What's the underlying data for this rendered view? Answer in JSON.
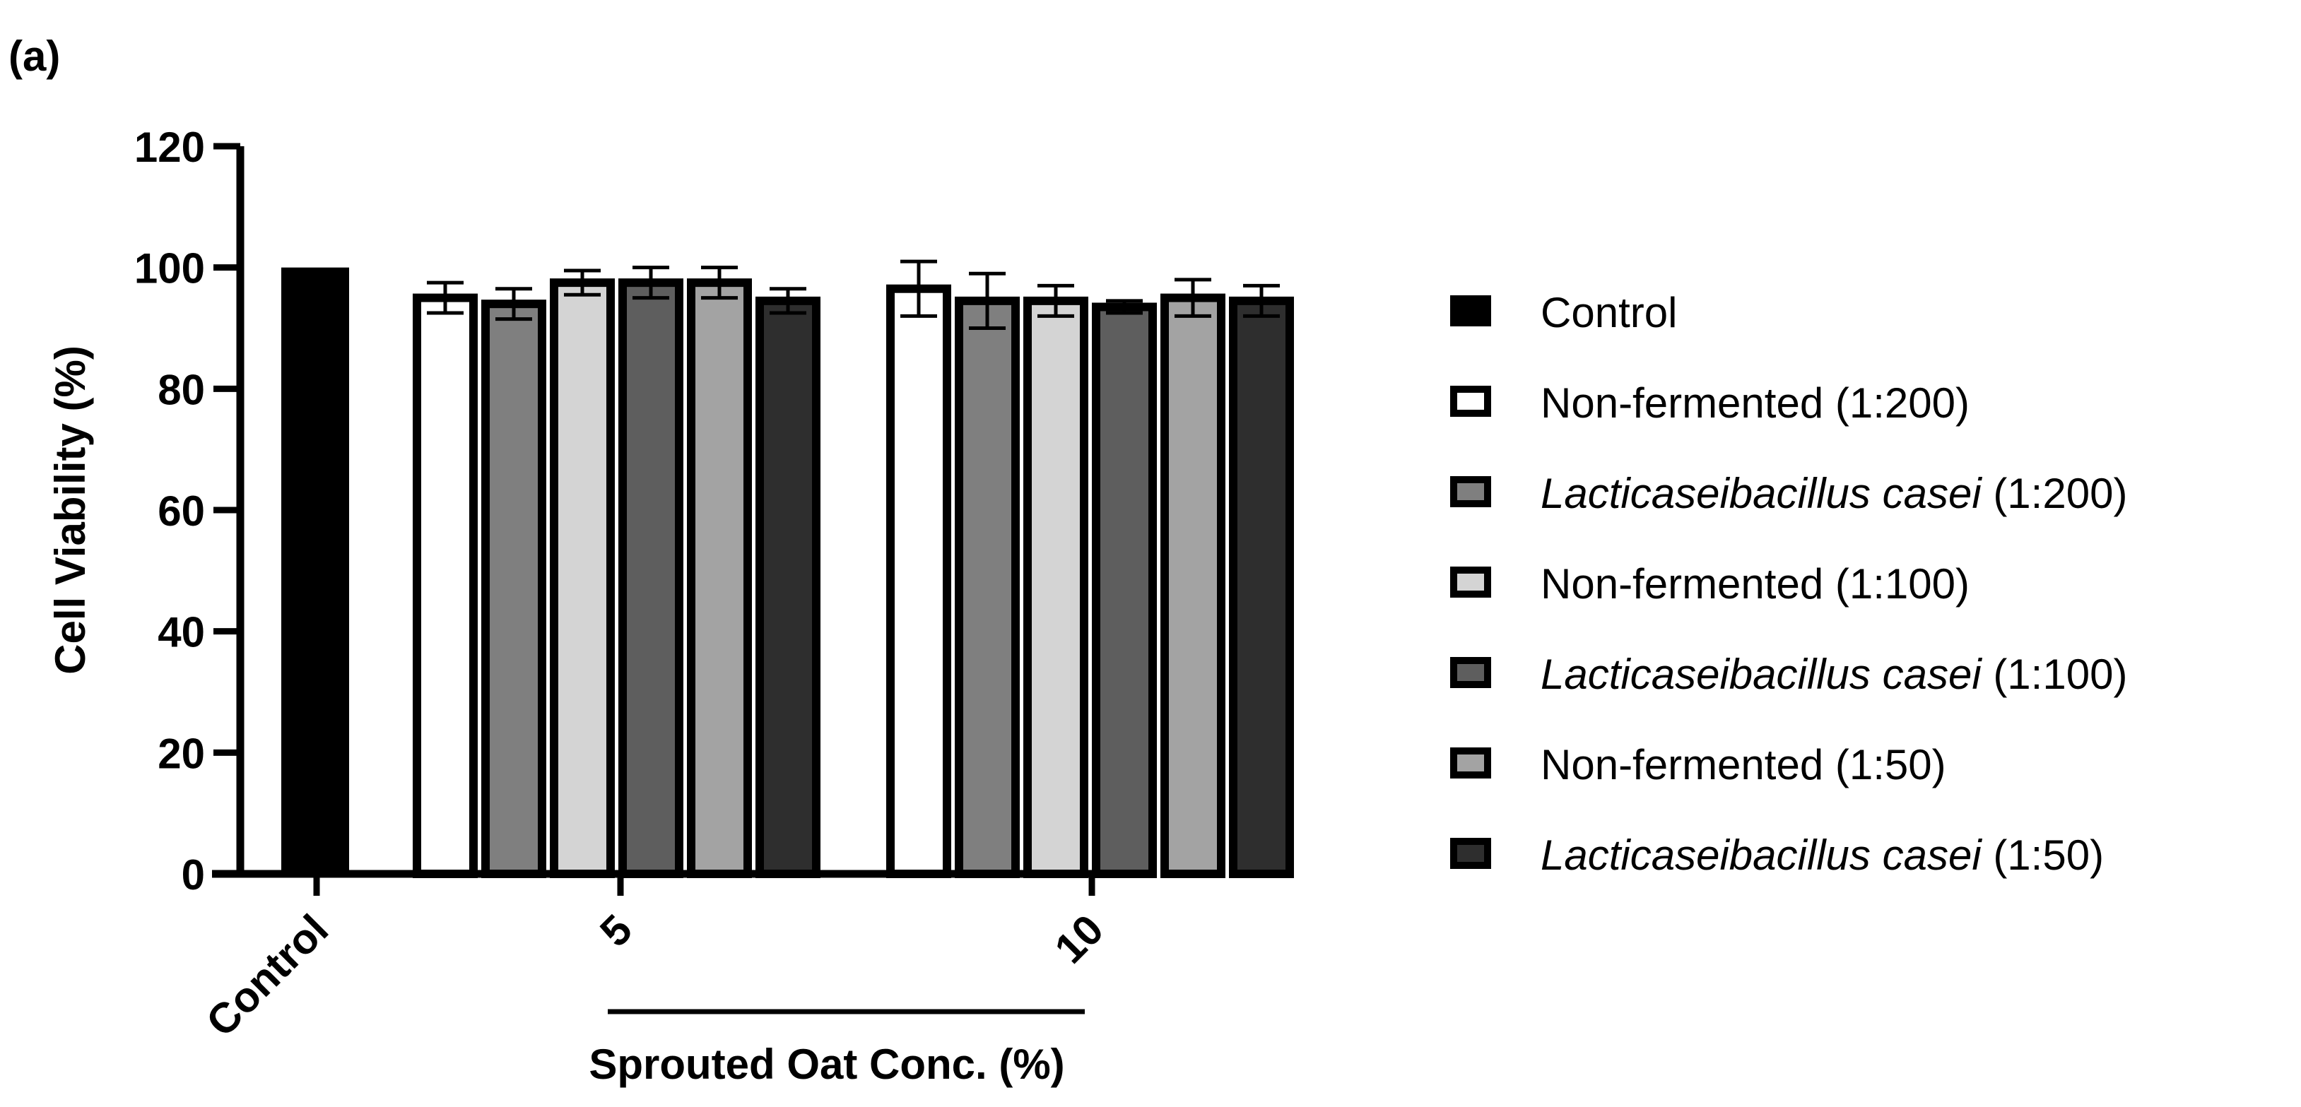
{
  "panel_label": "(a)",
  "chart_data": {
    "type": "bar",
    "ylabel": "Cell Viability (%)",
    "xlabel": "Sprouted Oat Conc. (%)",
    "ylim": [
      0,
      120
    ],
    "yticks": [
      0,
      20,
      40,
      60,
      80,
      100,
      120
    ],
    "categories": [
      "Control",
      "5",
      "10"
    ],
    "series": [
      {
        "name": "Control",
        "color": "#000000",
        "values": [
          100,
          null,
          null
        ],
        "errors": [
          0,
          null,
          null
        ]
      },
      {
        "name": "Non-fermented (1:200)",
        "color": "#ffffff",
        "values": [
          null,
          95,
          96.5
        ],
        "errors": [
          null,
          2.5,
          4.5
        ]
      },
      {
        "name": "Lacticaseibacillus casei (1:200)",
        "color": "#7f7f7f",
        "values": [
          null,
          94,
          94.5
        ],
        "errors": [
          null,
          2.5,
          4.5
        ]
      },
      {
        "name": "Non-fermented (1:100)",
        "color": "#d4d4d4",
        "values": [
          null,
          97.5,
          94.5
        ],
        "errors": [
          null,
          2.0,
          2.5
        ]
      },
      {
        "name": "Lacticaseibacillus casei (1:100)",
        "color": "#5e5e5e",
        "values": [
          null,
          97.5,
          93.5
        ],
        "errors": [
          null,
          2.5,
          1.0
        ]
      },
      {
        "name": "Non-fermented (1:50)",
        "color": "#a3a3a3",
        "values": [
          null,
          97.5,
          95
        ],
        "errors": [
          null,
          2.5,
          3.0
        ]
      },
      {
        "name": "Lacticaseibacillus casei (1:50)",
        "color": "#2e2e2e",
        "values": [
          null,
          94.5,
          94.5
        ],
        "errors": [
          null,
          2.0,
          2.5
        ]
      }
    ],
    "legend": [
      {
        "prefix": "Control",
        "italic": "",
        "suffix": ""
      },
      {
        "prefix": "Non-fermented (1:200)",
        "italic": "",
        "suffix": ""
      },
      {
        "prefix": "",
        "italic": "Lacticaseibacillus casei",
        "suffix": " (1:200)"
      },
      {
        "prefix": "Non-fermented (1:100)",
        "italic": "",
        "suffix": ""
      },
      {
        "prefix": "",
        "italic": "Lacticaseibacillus casei",
        "suffix": " (1:100)"
      },
      {
        "prefix": "Non-fermented (1:50)",
        "italic": "",
        "suffix": ""
      },
      {
        "prefix": "",
        "italic": "Lacticaseibacillus casei",
        "suffix": " (1:50)"
      }
    ],
    "legend_position": "right"
  }
}
